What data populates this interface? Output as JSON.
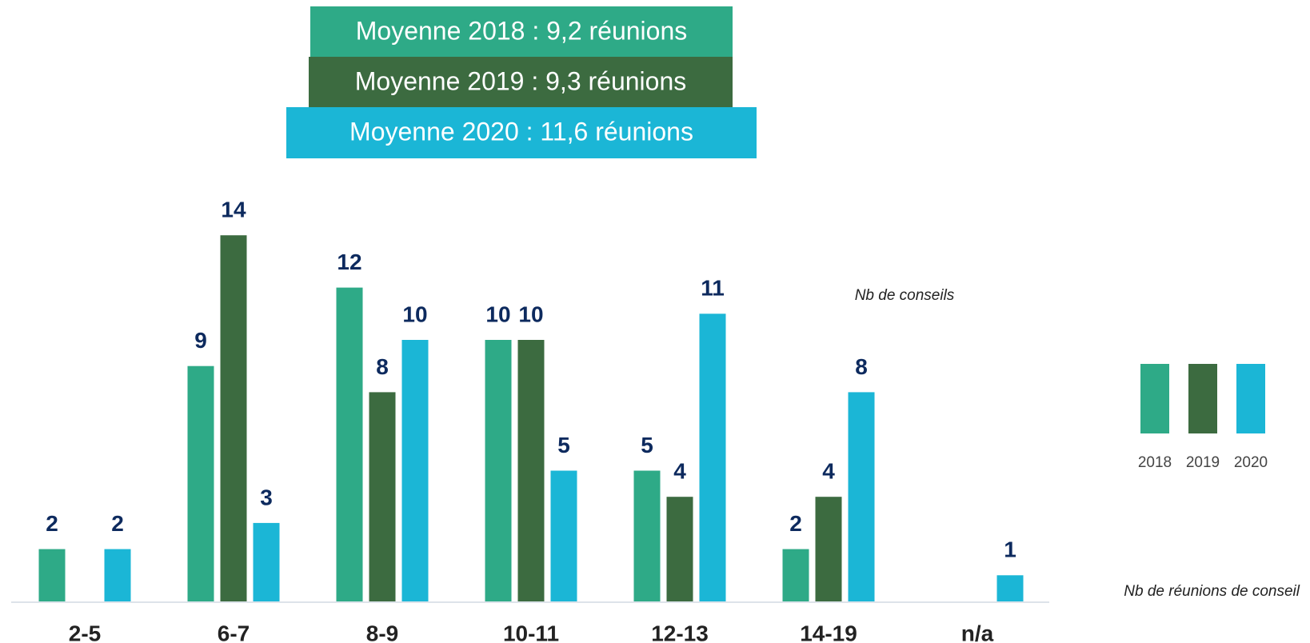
{
  "chart_data": {
    "type": "bar",
    "annotations": [
      "Moyenne 2018 : 9,2 réunions",
      "Moyenne 2019 : 9,3 réunions",
      "Moyenne 2020 : 11,6 réunions",
      "Nb de conseils",
      "Nb de réunions de conseil"
    ],
    "categories": [
      "2-5",
      "6-7",
      "8-9",
      "10-11",
      "12-13",
      "14-19",
      "n/a"
    ],
    "series": [
      {
        "name": "2018",
        "color": "#2eaa87",
        "values": [
          2,
          9,
          12,
          10,
          5,
          2,
          null
        ]
      },
      {
        "name": "2019",
        "color": "#3c6b40",
        "values": [
          null,
          14,
          8,
          10,
          4,
          4,
          null
        ]
      },
      {
        "name": "2020",
        "color": "#1bb6d6",
        "values": [
          2,
          3,
          10,
          5,
          11,
          8,
          1
        ]
      }
    ],
    "legend": "right"
  }
}
